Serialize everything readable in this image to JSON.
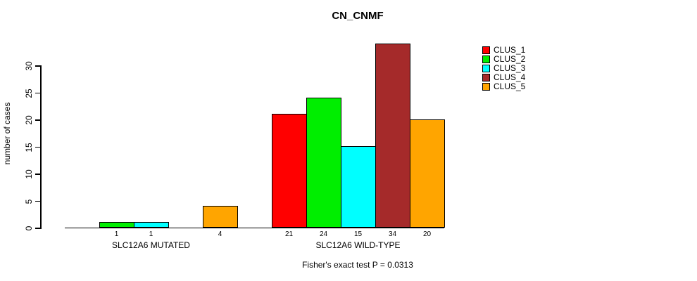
{
  "chart_data": {
    "type": "bar",
    "title": "CN_CNMF",
    "ylabel": "number of cases",
    "xlabel": "",
    "annotation": "Fisher's exact test P = 0.0313",
    "categories": [
      "SLC12A6 MUTATED",
      "SLC12A6 WILD-TYPE"
    ],
    "series": [
      {
        "name": "CLUS_1",
        "color": "#FF0000",
        "values": [
          0,
          21
        ]
      },
      {
        "name": "CLUS_2",
        "color": "#00EE00",
        "values": [
          1,
          24
        ]
      },
      {
        "name": "CLUS_3",
        "color": "#00FFFF",
        "values": [
          1,
          15
        ]
      },
      {
        "name": "CLUS_4",
        "color": "#A52A2A",
        "values": [
          0,
          34
        ]
      },
      {
        "name": "CLUS_5",
        "color": "#FFA500",
        "values": [
          4,
          20
        ]
      }
    ],
    "bar_labels": [
      [
        "",
        "1",
        "1",
        "",
        "4"
      ],
      [
        "21",
        "24",
        "15",
        "34",
        "20"
      ]
    ],
    "yticks": [
      0,
      5,
      10,
      15,
      20,
      25,
      30
    ],
    "ylim": [
      0,
      34
    ],
    "grid": false,
    "legend_position": "right-top"
  }
}
